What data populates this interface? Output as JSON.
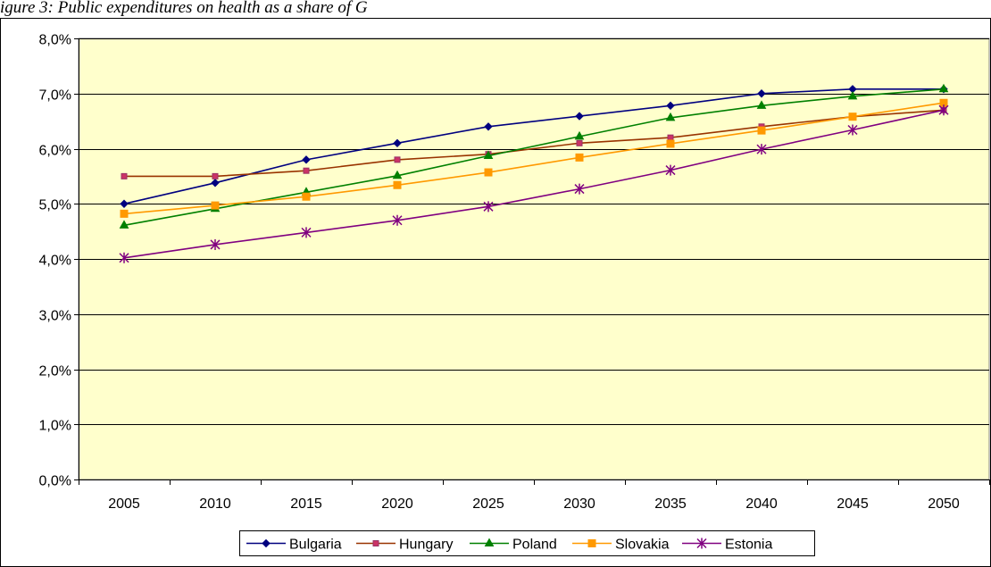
{
  "caption": "igure 3: Public expenditures on health as a share of G",
  "chart_data": {
    "type": "line",
    "categories": [
      "2005",
      "2010",
      "2015",
      "2020",
      "2025",
      "2030",
      "2035",
      "2040",
      "2045",
      "2050"
    ],
    "y_tick_labels": [
      "0,0%",
      "1,0%",
      "2,0%",
      "3,0%",
      "4,0%",
      "5,0%",
      "6,0%",
      "7,0%",
      "8,0%"
    ],
    "ylim": [
      0,
      8
    ],
    "grid": true,
    "legend_position": "bottom",
    "plot_background": "#ffffcc",
    "series": [
      {
        "name": "Bulgaria",
        "color": "#00007f",
        "marker": "diamond",
        "values": [
          5.0,
          5.38,
          5.8,
          6.1,
          6.4,
          6.59,
          6.78,
          7.0,
          7.08,
          7.08
        ]
      },
      {
        "name": "Hungary",
        "color": "#993300",
        "marker": "square-pink",
        "values": [
          5.5,
          5.5,
          5.6,
          5.8,
          5.9,
          6.1,
          6.2,
          6.4,
          6.58,
          6.7
        ]
      },
      {
        "name": "Poland",
        "color": "#008000",
        "marker": "triangle",
        "values": [
          4.61,
          4.91,
          5.21,
          5.51,
          5.87,
          6.22,
          6.56,
          6.78,
          6.95,
          7.08
        ]
      },
      {
        "name": "Slovakia",
        "color": "#ff9900",
        "marker": "square",
        "values": [
          4.82,
          4.97,
          5.13,
          5.34,
          5.57,
          5.84,
          6.09,
          6.33,
          6.58,
          6.83
        ]
      },
      {
        "name": "Estonia",
        "color": "#800080",
        "marker": "star",
        "values": [
          4.02,
          4.26,
          4.48,
          4.7,
          4.95,
          5.27,
          5.61,
          5.99,
          6.34,
          6.7
        ]
      }
    ]
  }
}
